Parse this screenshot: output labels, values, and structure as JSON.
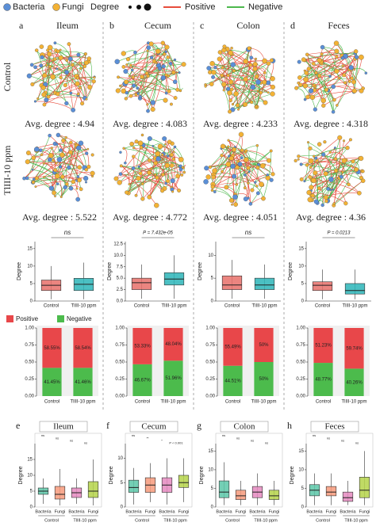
{
  "legend": {
    "items": [
      {
        "name": "Bacteria",
        "color": "#5b8fd6"
      },
      {
        "name": "Fungi",
        "color": "#f3b235"
      }
    ],
    "degree": "Degree",
    "lines": [
      {
        "name": "Positive",
        "color": "#e74c3c"
      },
      {
        "name": "Negative",
        "color": "#4cb84c"
      }
    ]
  },
  "row_labels": [
    "Control",
    "TlIII-10 ppm"
  ],
  "avg_label": "Avg. degree : ",
  "panels": [
    {
      "letter": "a",
      "title": "Ileum",
      "avg_degree": [
        4.94,
        5.522
      ]
    },
    {
      "letter": "b",
      "title": "Cecum",
      "avg_degree": [
        4.083,
        4.772
      ]
    },
    {
      "letter": "c",
      "title": "Colon",
      "avg_degree": [
        4.233,
        4.051
      ]
    },
    {
      "letter": "d",
      "title": "Feces",
      "avg_degree": [
        4.318,
        4.36
      ]
    }
  ],
  "chart_data": [
    {
      "type": "box",
      "ylabel": "Degree",
      "annotation": "ns",
      "categories": [
        "Control",
        "TlIII-10 ppm"
      ],
      "colors": [
        "#e8706a",
        "#2bb5b8"
      ],
      "boxes": [
        {
          "min": 0.5,
          "q1": 3,
          "median": 4.5,
          "q3": 6,
          "max": 10
        },
        {
          "min": 0.5,
          "q1": 3,
          "median": 4.8,
          "q3": 6.5,
          "max": 11
        }
      ],
      "ylim": [
        0,
        17
      ],
      "yticks": [
        0,
        5,
        10,
        15
      ]
    },
    {
      "type": "box",
      "ylabel": "Degree",
      "annotation": "P = 7.432e-05",
      "categories": [
        "Control",
        "TlIII-10 ppm"
      ],
      "colors": [
        "#e8706a",
        "#2bb5b8"
      ],
      "boxes": [
        {
          "min": 0.5,
          "q1": 2.5,
          "median": 4,
          "q3": 5,
          "max": 8
        },
        {
          "min": 0.5,
          "q1": 3.5,
          "median": 4.8,
          "q3": 6.2,
          "max": 10
        }
      ],
      "ylim": [
        0,
        13
      ],
      "yticks": [
        {
          "value": 0,
          "label": "0.0"
        },
        {
          "value": 2.5,
          "label": "2.5"
        },
        {
          "value": 5,
          "label": "5.0"
        },
        {
          "value": 7.5,
          "label": "7.5"
        },
        {
          "value": 10,
          "label": "10.0"
        },
        {
          "value": 12.5,
          "label": "12.5"
        }
      ]
    },
    {
      "type": "box",
      "ylabel": "Degree",
      "annotation": "ns",
      "categories": [
        "Control",
        "TlIII-10 ppm"
      ],
      "colors": [
        "#e8706a",
        "#2bb5b8"
      ],
      "boxes": [
        {
          "min": 0.5,
          "q1": 2.5,
          "median": 3.5,
          "q3": 5.5,
          "max": 9
        },
        {
          "min": 0.5,
          "q1": 2.5,
          "median": 3.5,
          "q3": 5,
          "max": 8
        }
      ],
      "ylim": [
        0,
        13
      ],
      "yticks": [
        0,
        5,
        10
      ]
    },
    {
      "type": "box",
      "ylabel": "Degree",
      "annotation": "P = 0.0213",
      "categories": [
        "Control",
        "TlIII-10 ppm"
      ],
      "colors": [
        "#e8706a",
        "#2bb5b8"
      ],
      "boxes": [
        {
          "min": 0.5,
          "q1": 3,
          "median": 4.5,
          "q3": 5.5,
          "max": 9
        },
        {
          "min": 0.5,
          "q1": 2,
          "median": 3,
          "q3": 5,
          "max": 9
        }
      ],
      "ylim": [
        0,
        17
      ],
      "yticks": [
        0,
        5,
        10,
        15
      ]
    },
    {
      "type": "stacked_bar",
      "categories": [
        "Control",
        "TlIII-10 ppm"
      ],
      "series": [
        {
          "name": "Positive",
          "color": "#e8474a",
          "values": [
            0.5855,
            0.5854
          ],
          "value_labels": [
            "58.55%",
            "58.54%"
          ]
        },
        {
          "name": "Negative",
          "color": "#4cbb4c",
          "values": [
            0.4145,
            0.4146
          ],
          "value_labels": [
            "41.45%",
            "41.46%"
          ]
        }
      ],
      "ylim": [
        0,
        1
      ],
      "yticks": [
        {
          "value": 0,
          "label": "0.00"
        },
        {
          "value": 0.25,
          "label": "0.25"
        },
        {
          "value": 0.5,
          "label": "0.50"
        },
        {
          "value": 0.75,
          "label": "0.75"
        },
        {
          "value": 1,
          "label": "1.00"
        }
      ]
    },
    {
      "type": "stacked_bar",
      "categories": [
        "Control",
        "TlIII-10 ppm"
      ],
      "series": [
        {
          "color": "#e8474a",
          "values": [
            0.5333,
            0.4804
          ],
          "value_labels": [
            "53.33%",
            "48.04%"
          ]
        },
        {
          "color": "#4cbb4c",
          "values": [
            0.4667,
            0.5196
          ],
          "value_labels": [
            "46.67%",
            "51.96%"
          ]
        }
      ],
      "ylim": [
        0,
        1
      ],
      "yticks": [
        {
          "value": 0,
          "label": "0.00"
        },
        {
          "value": 0.25,
          "label": "0.25"
        },
        {
          "value": 0.5,
          "label": "0.50"
        },
        {
          "value": 0.75,
          "label": "0.75"
        },
        {
          "value": 1,
          "label": "1.00"
        }
      ]
    },
    {
      "type": "stacked_bar",
      "categories": [
        "Control",
        "TlIII-10 ppm"
      ],
      "series": [
        {
          "color": "#e8474a",
          "values": [
            0.5549,
            0.5
          ],
          "value_labels": [
            "55.49%",
            "50%"
          ]
        },
        {
          "color": "#4cbb4c",
          "values": [
            0.4451,
            0.5
          ],
          "value_labels": [
            "44.51%",
            "50%"
          ]
        }
      ],
      "ylim": [
        0,
        1
      ],
      "yticks": [
        {
          "value": 0,
          "label": "0.00"
        },
        {
          "value": 0.25,
          "label": "0.25"
        },
        {
          "value": 0.5,
          "label": "0.50"
        },
        {
          "value": 0.75,
          "label": "0.75"
        },
        {
          "value": 1,
          "label": "1.00"
        }
      ]
    },
    {
      "type": "stacked_bar",
      "categories": [
        "Control",
        "TlIII-10 ppm"
      ],
      "series": [
        {
          "color": "#e8474a",
          "values": [
            0.5123,
            0.5974
          ],
          "value_labels": [
            "51.23%",
            "59.74%"
          ]
        },
        {
          "color": "#4cbb4c",
          "values": [
            0.4877,
            0.4026
          ],
          "value_labels": [
            "48.77%",
            "40.26%"
          ]
        }
      ],
      "ylim": [
        0,
        1
      ],
      "yticks": [
        {
          "value": 0,
          "label": "0.00"
        },
        {
          "value": 0.25,
          "label": "0.25"
        },
        {
          "value": 0.5,
          "label": "0.50"
        },
        {
          "value": 0.75,
          "label": "0.75"
        },
        {
          "value": 1,
          "label": "1.00"
        }
      ]
    },
    {
      "type": "group_box",
      "letter": "e",
      "title": "Ileum",
      "ylabel": "Degree",
      "annotations": [
        "ns",
        "ns",
        "ns",
        "ns"
      ],
      "categories": [
        "Bacteria",
        "Fungi",
        "Bacteria",
        "Fungi"
      ],
      "groups": [
        "Control",
        "TlIII-10 ppm"
      ],
      "colors": [
        "#5cc7a8",
        "#f79a7b",
        "#e58ac0",
        "#b5d44a"
      ],
      "boxes": [
        {
          "min": 1,
          "q1": 4,
          "median": 5,
          "q3": 6,
          "max": 9
        },
        {
          "min": 0.5,
          "q1": 2.5,
          "median": 4,
          "q3": 6.5,
          "max": 12
        },
        {
          "min": 1,
          "q1": 3,
          "median": 4.5,
          "q3": 6,
          "max": 9
        },
        {
          "min": 0.5,
          "q1": 3,
          "median": 5,
          "q3": 8,
          "max": 15
        }
      ],
      "ylim": [
        0,
        20
      ],
      "yticks": [
        0,
        5,
        10,
        15
      ]
    },
    {
      "type": "group_box",
      "letter": "f",
      "title": "Cecum",
      "ylabel": "Degree",
      "annotations": [
        "ns",
        "**",
        "*",
        "P < 0.001"
      ],
      "categories": [
        "Bacteria",
        "Fungi",
        "Bacteria",
        "Fungi"
      ],
      "groups": [
        "Control",
        "TlIII-10 ppm"
      ],
      "colors": [
        "#5cc7a8",
        "#f79a7b",
        "#e58ac0",
        "#b5d44a"
      ],
      "boxes": [
        {
          "min": 0.5,
          "q1": 3,
          "median": 4,
          "q3": 5.5,
          "max": 8
        },
        {
          "min": 1,
          "q1": 3,
          "median": 4.5,
          "q3": 6,
          "max": 9
        },
        {
          "min": 0.5,
          "q1": 3,
          "median": 4.5,
          "q3": 6,
          "max": 10
        },
        {
          "min": 1,
          "q1": 4,
          "median": 5,
          "q3": 6.5,
          "max": 10
        }
      ],
      "ylim": [
        0,
        13
      ],
      "yticks": [
        0,
        5,
        10
      ]
    },
    {
      "type": "group_box",
      "letter": "g",
      "title": "Colon",
      "ylabel": "Degree",
      "annotations": [
        "ns",
        "ns",
        "ns",
        "ns"
      ],
      "categories": [
        "Bacteria",
        "Fungi",
        "Bacteria",
        "Fungi"
      ],
      "groups": [
        "Control",
        "TlIII-10 ppm"
      ],
      "colors": [
        "#5cc7a8",
        "#f79a7b",
        "#e58ac0",
        "#b5d44a"
      ],
      "boxes": [
        {
          "min": 0.5,
          "q1": 2.5,
          "median": 4,
          "q3": 7,
          "max": 12
        },
        {
          "min": 0.5,
          "q1": 2,
          "median": 3,
          "q3": 4.5,
          "max": 7
        },
        {
          "min": 0.5,
          "q1": 2.5,
          "median": 4,
          "q3": 5.5,
          "max": 9
        },
        {
          "min": 0.5,
          "q1": 2,
          "median": 3,
          "q3": 4.5,
          "max": 7
        }
      ],
      "ylim": [
        0,
        17
      ],
      "yticks": [
        0,
        5,
        10,
        15
      ]
    },
    {
      "type": "group_box",
      "letter": "h",
      "title": "Feces",
      "ylabel": "Degree",
      "annotations": [
        "ns",
        "ns",
        "ns",
        "ns"
      ],
      "categories": [
        "Bacteria",
        "Fungi",
        "Bacteria",
        "Fungi"
      ],
      "groups": [
        "Control",
        "TlIII-10 ppm"
      ],
      "colors": [
        "#5cc7a8",
        "#f79a7b",
        "#e58ac0",
        "#b5d44a"
      ],
      "boxes": [
        {
          "min": 0.5,
          "q1": 3,
          "median": 4.5,
          "q3": 6,
          "max": 9
        },
        {
          "min": 0.5,
          "q1": 3,
          "median": 4,
          "q3": 5.5,
          "max": 9
        },
        {
          "min": 0.5,
          "q1": 1.5,
          "median": 2.5,
          "q3": 4,
          "max": 7
        },
        {
          "min": 0.5,
          "q1": 2.5,
          "median": 4.5,
          "q3": 8,
          "max": 15
        }
      ],
      "ylim": [
        0,
        17
      ],
      "yticks": [
        0,
        5,
        10,
        15
      ]
    }
  ]
}
